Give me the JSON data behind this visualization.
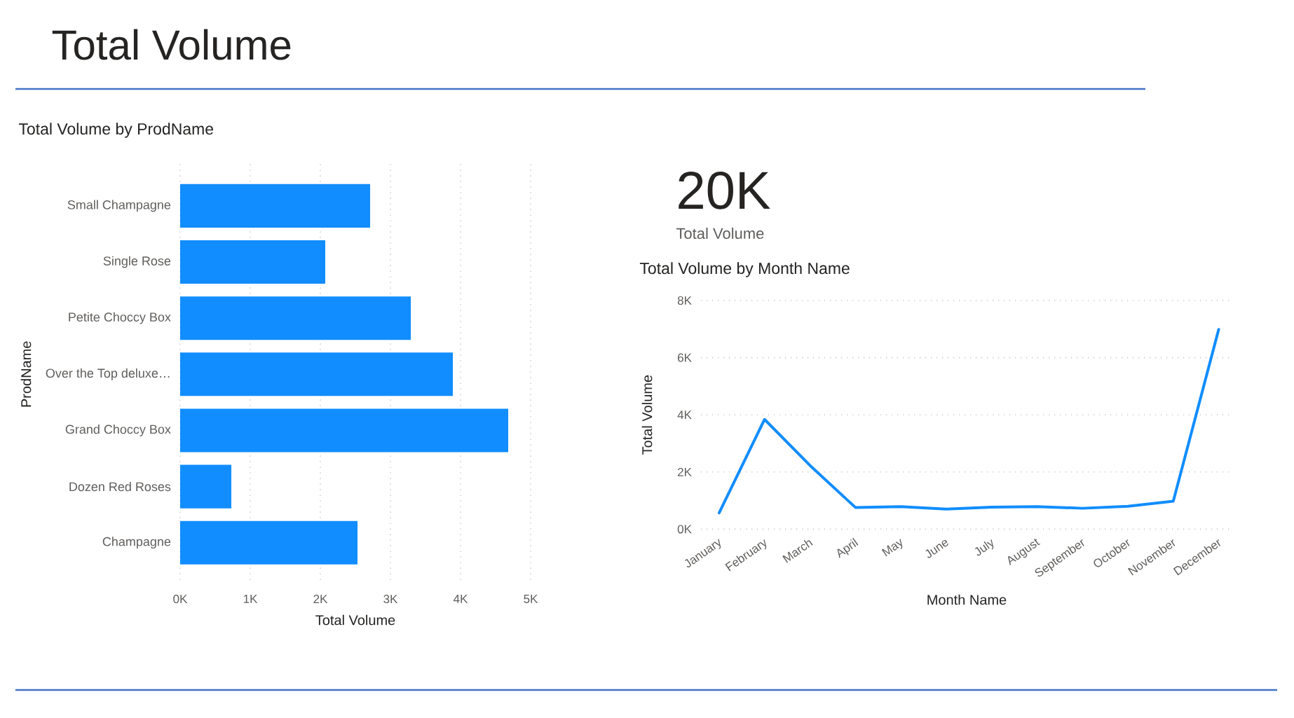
{
  "chart_data": [
    {
      "type": "other",
      "title": "Total Volume"
    },
    {
      "type": "bar",
      "orientation": "horizontal",
      "title": "Total Volume by ProdName",
      "xlabel": "Total Volume",
      "ylabel": "ProdName",
      "categories": [
        "Small Champagne",
        "Single Rose",
        "Petite Choccy Box",
        "Over the Top deluxe…",
        "Grand Choccy Box",
        "Dozen Red Roses",
        "Champagne"
      ],
      "values": [
        2710,
        2070,
        3290,
        3890,
        4680,
        730,
        2530
      ],
      "color": "#118dff",
      "xlim": [
        0,
        5000
      ],
      "xticks": [
        {
          "value": 0,
          "label": "0K"
        },
        {
          "value": 1000,
          "label": "1K"
        },
        {
          "value": 2000,
          "label": "2K"
        },
        {
          "value": 3000,
          "label": "3K"
        },
        {
          "value": 4000,
          "label": "4K"
        },
        {
          "value": 5000,
          "label": "5K"
        }
      ],
      "grid": "x"
    },
    {
      "type": "other",
      "annotations": [
        "20K",
        "Total Volume"
      ]
    },
    {
      "type": "line",
      "title": "Total Volume by Month Name",
      "xlabel": "Month Name",
      "ylabel": "Total Volume",
      "categories": [
        "January",
        "February",
        "March",
        "April",
        "May",
        "June",
        "July",
        "August",
        "September",
        "October",
        "November",
        "December"
      ],
      "values": [
        570,
        3840,
        2230,
        760,
        790,
        700,
        770,
        790,
        730,
        800,
        980,
        6990
      ],
      "color": "#118dff",
      "ylim": [
        0,
        8000
      ],
      "yticks": [
        {
          "value": 0,
          "label": "0K"
        },
        {
          "value": 2000,
          "label": "2K"
        },
        {
          "value": 4000,
          "label": "4K"
        },
        {
          "value": 6000,
          "label": "6K"
        },
        {
          "value": 8000,
          "label": "8K"
        }
      ],
      "grid": "y"
    }
  ]
}
